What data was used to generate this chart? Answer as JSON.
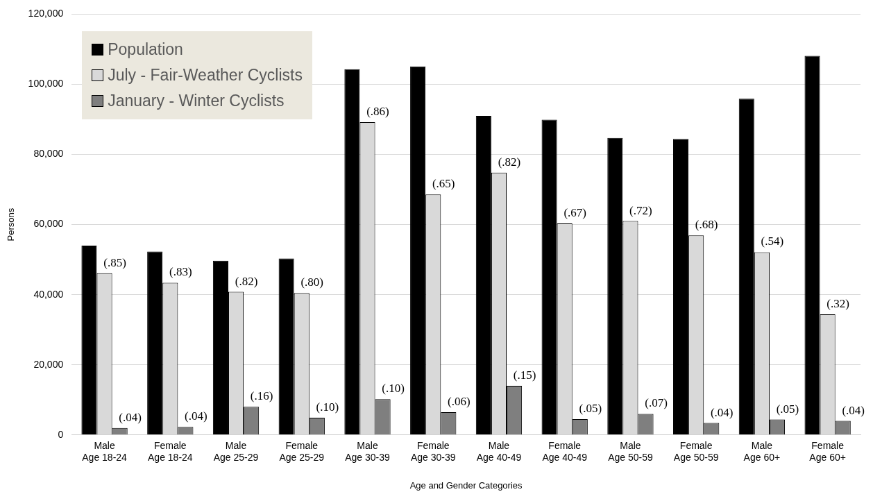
{
  "chart_data": {
    "type": "bar",
    "xlabel": "Age and Gender Categories",
    "ylabel": "Persons",
    "categories": [
      "Male Age 18-24",
      "Female Age 18-24",
      "Male Age 25-29",
      "Female Age 25-29",
      "Male Age 30-39",
      "Female Age 30-39",
      "Male Age 40-49",
      "Female Age 40-49",
      "Male Age 50-59",
      "Female Age 50-59",
      "Male Age 60+",
      "Female Age 60+"
    ],
    "series": [
      {
        "name": "Population",
        "color": "#000000",
        "values": [
          54000,
          52300,
          49700,
          50300,
          104300,
          105100,
          91000,
          89900,
          84700,
          84400,
          95900,
          108100
        ]
      },
      {
        "name": "July - Fair-Weather Cyclists",
        "color": "#d9d9d9",
        "values": [
          46100,
          43400,
          40800,
          40500,
          89200,
          68600,
          74800,
          60300,
          61000,
          56900,
          52100,
          34400
        ]
      },
      {
        "name": "January - Winter Cyclists",
        "color": "#7f7f7f",
        "values": [
          2000,
          2300,
          8000,
          4900,
          10200,
          6500,
          14000,
          4500,
          6000,
          3400,
          4400,
          4000
        ]
      }
    ],
    "annotations": [
      {
        "text": "(.85)",
        "x": "Male Age 18-24",
        "y": 46100
      },
      {
        "text": "(.83)",
        "x": "Female Age 18-24",
        "y": 43400
      },
      {
        "text": "(.82)",
        "x": "Male Age 25-29",
        "y": 40800
      },
      {
        "text": "(.80)",
        "x": "Female Age 25-29",
        "y": 40500
      },
      {
        "text": "(.86)",
        "x": "Male Age 30-39",
        "y": 89200
      },
      {
        "text": "(.65)",
        "x": "Female Age 30-39",
        "y": 68600
      },
      {
        "text": "(.82)",
        "x": "Male Age 40-49",
        "y": 74800
      },
      {
        "text": "(.67)",
        "x": "Female Age 40-49",
        "y": 60300
      },
      {
        "text": "(.72)",
        "x": "Male Age 50-59",
        "y": 61000
      },
      {
        "text": "(.68)",
        "x": "Female Age 50-59",
        "y": 56900
      },
      {
        "text": "(.54)",
        "x": "Male Age 60+",
        "y": 52100
      },
      {
        "text": "(.32)",
        "x": "Female Age 60+",
        "y": 34400
      },
      "(.04)",
      "(.04)",
      "(.16)",
      "(.10)",
      "(.10)",
      "(.06)",
      "(.15)",
      "(.05)",
      "(.07)",
      "(.04)",
      "(.05)",
      "(.04)"
    ],
    "ylim": [
      0,
      120000
    ],
    "yticks": [
      0,
      {
        "value": 20000,
        "label": "20,000"
      },
      {
        "value": 40000,
        "label": "40,000"
      },
      {
        "value": 60000,
        "label": "60,000"
      },
      {
        "value": 80000,
        "label": "80,000"
      },
      {
        "value": 100000,
        "label": "100,000"
      },
      {
        "value": 120000,
        "label": "120,000"
      }
    ],
    "grid": "y",
    "legend": "top left"
  }
}
